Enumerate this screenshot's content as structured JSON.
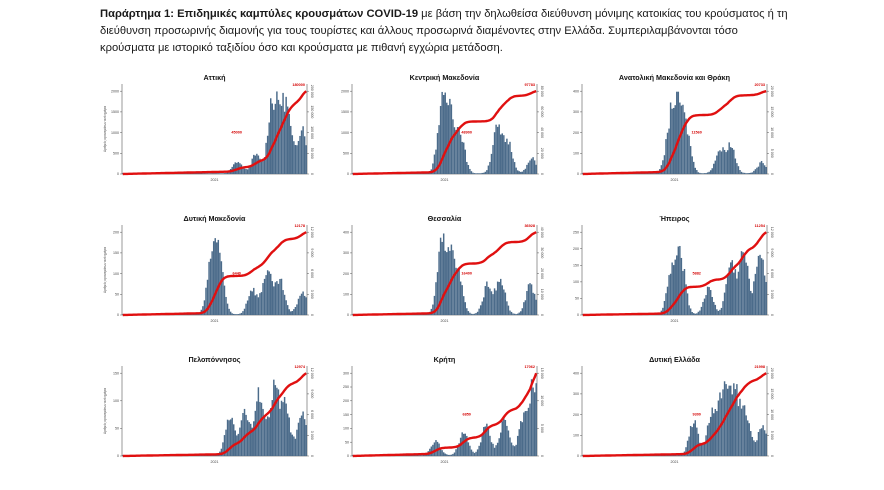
{
  "caption": {
    "lead": "Παράρτημα 1:  Επιδημικές καμπύλες κρουσμάτων COVID-19",
    "text": " με βάση την δηλωθείσα διεύθυνση μόνιμης κατοικίας του κρούσματος ή τη διεύθυνση προσωρινής διαμονής για τους τουρίστες και άλλους προσωρινά διαμένοντες στην Ελλάδα. Συμπεριλαμβάνονται τόσο κρούσματα με ιστορικό ταξιδίου όσο και κρούσματα με πιθανή εγχώρια μετάδοση."
  },
  "colors": {
    "bars": "#4b6b8a",
    "cumulative": "#e01010",
    "label": "#d40000"
  },
  "chart_data": [
    {
      "type": "bar",
      "title": "Αττική",
      "ylabel": "Αριθμός κρουσμάτων ανά ημέρα",
      "x_tick": "2021",
      "ylim": [
        0,
        2500
      ],
      "yticks": [
        "0",
        "500",
        "1000",
        "1500",
        "2000"
      ],
      "y2ticks": [
        "0",
        "50 000",
        "100 000",
        "150 000",
        "200 000"
      ],
      "end_label": "180000",
      "mid_label": "45000",
      "peaks": [
        [
          0.62,
          0.16
        ],
        [
          0.72,
          0.25
        ],
        [
          0.81,
          0.98
        ],
        [
          0.85,
          0.85
        ],
        [
          0.89,
          0.7
        ],
        [
          0.97,
          0.65
        ]
      ]
    },
    {
      "type": "bar",
      "title": "Κεντρική Μακεδονία",
      "ylabel": "",
      "x_tick": "2021",
      "ylim": [
        0,
        2000
      ],
      "yticks": [
        "0",
        "500",
        "1000",
        "1500",
        "2000"
      ],
      "y2ticks": [
        "0",
        "20 000",
        "40 000",
        "60 000",
        "80 000"
      ],
      "end_label": "97783",
      "mid_label": "48900",
      "peaks": [
        [
          0.48,
          0.75
        ],
        [
          0.52,
          0.95
        ],
        [
          0.58,
          0.55
        ],
        [
          0.78,
          0.6
        ],
        [
          0.84,
          0.42
        ],
        [
          0.97,
          0.2
        ]
      ]
    },
    {
      "type": "bar",
      "title": "Ανατολική Μακεδονία και Θράκη",
      "ylabel": "",
      "x_tick": "2021",
      "ylim": [
        0,
        400
      ],
      "yticks": [
        "0",
        "100",
        "200",
        "300",
        "400"
      ],
      "y2ticks": [
        "0",
        "5 000",
        "10 000",
        "15 000",
        "20 000"
      ],
      "end_label": "20733",
      "mid_label": "11560",
      "peaks": [
        [
          0.47,
          0.5
        ],
        [
          0.51,
          1.0
        ],
        [
          0.56,
          0.55
        ],
        [
          0.74,
          0.3
        ],
        [
          0.8,
          0.38
        ],
        [
          0.97,
          0.15
        ]
      ]
    },
    {
      "type": "bar",
      "title": "Δυτική Μακεδονία",
      "ylabel": "Αριθμός κρουσμάτων ανά ημέρα",
      "x_tick": "2021",
      "ylim": [
        0,
        200
      ],
      "yticks": [
        "0",
        "50",
        "100",
        "150",
        "200"
      ],
      "y2ticks": [
        "0",
        "3 000",
        "6 000",
        "9 000",
        "12 000"
      ],
      "end_label": "12178",
      "mid_label": "6440",
      "peaks": [
        [
          0.48,
          0.65
        ],
        [
          0.52,
          0.8
        ],
        [
          0.7,
          0.35
        ],
        [
          0.78,
          0.6
        ],
        [
          0.85,
          0.45
        ],
        [
          0.97,
          0.3
        ]
      ]
    },
    {
      "type": "bar",
      "title": "Θεσσαλία",
      "ylabel": "",
      "x_tick": "2021",
      "ylim": [
        0,
        400
      ],
      "yticks": [
        "0",
        "100",
        "200",
        "300",
        "400"
      ],
      "y2ticks": [
        "0",
        "10 000",
        "20 000",
        "30 000",
        "40 000"
      ],
      "end_label": "36928",
      "mid_label": "16400",
      "peaks": [
        [
          0.48,
          0.8
        ],
        [
          0.52,
          0.95
        ],
        [
          0.57,
          0.5
        ],
        [
          0.73,
          0.4
        ],
        [
          0.8,
          0.45
        ],
        [
          0.96,
          0.4
        ]
      ]
    },
    {
      "type": "bar",
      "title": "Ήπειρος",
      "ylabel": "",
      "x_tick": "2021",
      "ylim": [
        0,
        300
      ],
      "yticks": [
        "0",
        "50",
        "100",
        "150",
        "200",
        "250"
      ],
      "y2ticks": [
        "0",
        "3 000",
        "6 000",
        "9 000",
        "12 000"
      ],
      "end_label": "11254",
      "mid_label": "5882",
      "peaks": [
        [
          0.48,
          0.55
        ],
        [
          0.53,
          0.75
        ],
        [
          0.68,
          0.35
        ],
        [
          0.8,
          0.7
        ],
        [
          0.87,
          0.85
        ],
        [
          0.96,
          0.9
        ]
      ]
    },
    {
      "type": "bar",
      "title": "Πελοπόννησος",
      "ylabel": "Αριθμός κρουσμάτων ανά ημέρα",
      "x_tick": "2021",
      "ylim": [
        0,
        150
      ],
      "yticks": [
        "0",
        "50",
        "100",
        "150"
      ],
      "y2ticks": [
        "0",
        "3 000",
        "6 000",
        "9 000",
        "12 000"
      ],
      "end_label": "12974",
      "mid_label": "",
      "peaks": [
        [
          0.58,
          0.55
        ],
        [
          0.66,
          0.6
        ],
        [
          0.74,
          0.85
        ],
        [
          0.82,
          0.9
        ],
        [
          0.88,
          0.65
        ],
        [
          0.97,
          0.55
        ]
      ]
    },
    {
      "type": "bar",
      "title": "Κρήτη",
      "ylabel": "",
      "x_tick": "2021",
      "ylim": [
        0,
        300
      ],
      "yticks": [
        "0",
        "50",
        "100",
        "150",
        "200",
        "250",
        "300"
      ],
      "y2ticks": [
        "0",
        "5 000",
        "10 000",
        "15 000"
      ],
      "end_label": "17062",
      "mid_label": "6850",
      "peaks": [
        [
          0.45,
          0.2
        ],
        [
          0.6,
          0.3
        ],
        [
          0.72,
          0.4
        ],
        [
          0.82,
          0.5
        ],
        [
          0.92,
          0.45
        ],
        [
          0.98,
          1.0
        ]
      ]
    },
    {
      "type": "bar",
      "title": "Δυτική Ελλάδα",
      "ylabel": "",
      "x_tick": "2021",
      "ylim": [
        0,
        400
      ],
      "yticks": [
        "0",
        "100",
        "200",
        "300",
        "400"
      ],
      "y2ticks": [
        "0",
        "5 000",
        "10 000",
        "15 000",
        "20 000"
      ],
      "end_label": "21998",
      "mid_label": "9300",
      "peaks": [
        [
          0.6,
          0.45
        ],
        [
          0.7,
          0.6
        ],
        [
          0.76,
          0.85
        ],
        [
          0.82,
          0.9
        ],
        [
          0.88,
          0.55
        ],
        [
          0.97,
          0.4
        ]
      ]
    }
  ]
}
